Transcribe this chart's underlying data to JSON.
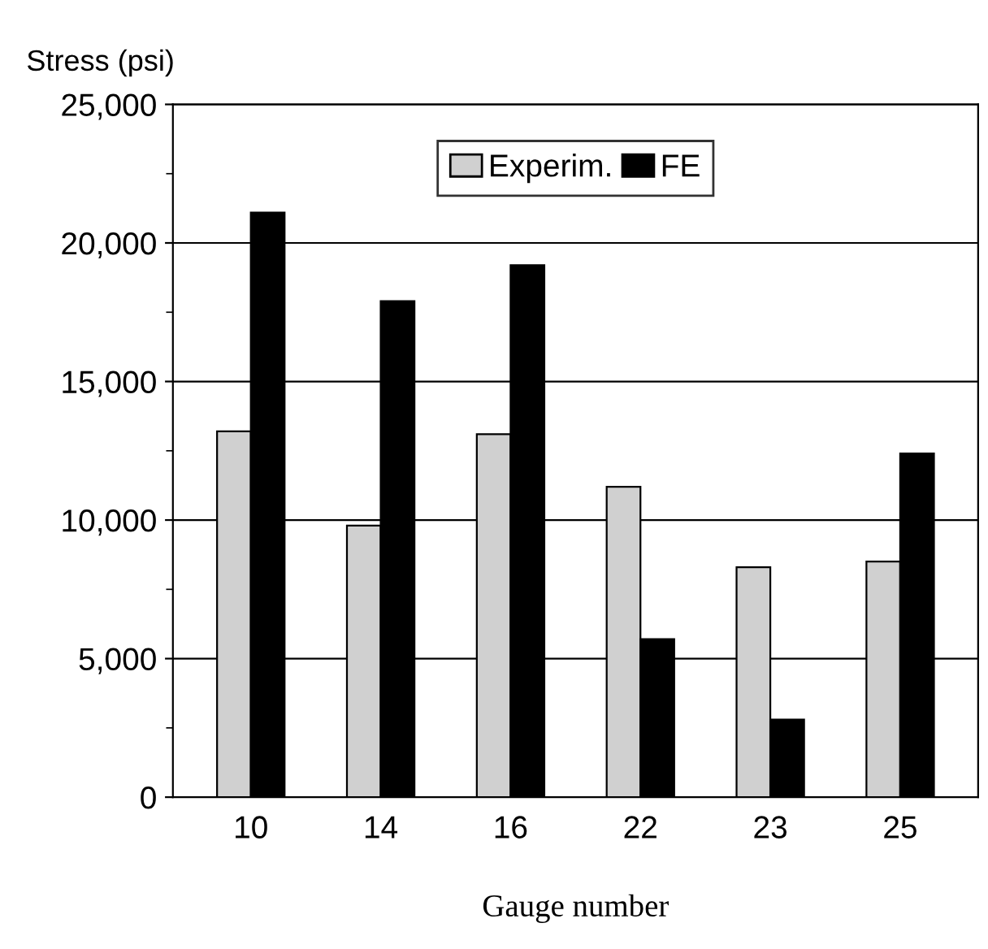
{
  "chart_data": {
    "type": "bar",
    "ylabel": "Stress (psi)",
    "xlabel": "Gauge number",
    "categories": [
      "10",
      "14",
      "16",
      "22",
      "23",
      "25"
    ],
    "series": [
      {
        "name": "Experim.",
        "color": "#d0d0d0",
        "values": [
          13200,
          9800,
          13100,
          11200,
          8300,
          8500
        ]
      },
      {
        "name": "FE",
        "color": "#000000",
        "values": [
          21100,
          17900,
          19200,
          5700,
          2800,
          12400
        ]
      }
    ],
    "ylim": [
      0,
      25000
    ],
    "yticks": [
      {
        "value": 0,
        "label": "0"
      },
      {
        "value": 2500,
        "label": null
      },
      {
        "value": 5000,
        "label": "5,000"
      },
      {
        "value": 7500,
        "label": null
      },
      {
        "value": 10000,
        "label": "10,000"
      },
      {
        "value": 12500,
        "label": null
      },
      {
        "value": 15000,
        "label": "15,000"
      },
      {
        "value": 17500,
        "label": null
      },
      {
        "value": 20000,
        "label": "20,000"
      },
      {
        "value": 22500,
        "label": null
      },
      {
        "value": 25000,
        "label": "25,000"
      }
    ],
    "grid": "y",
    "legend": "top"
  }
}
